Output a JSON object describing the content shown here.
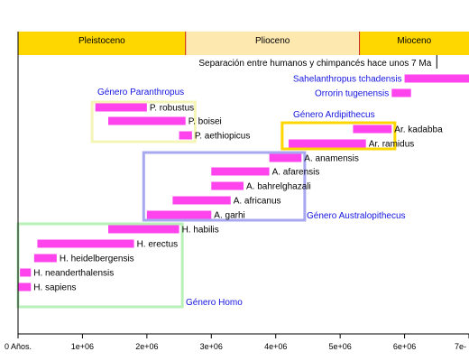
{
  "chart_data": {
    "type": "bar",
    "title": "",
    "xlabel": "",
    "ylabel": "",
    "x_range": [
      0,
      7000000
    ],
    "x_ticks": [
      {
        "value": 0,
        "label": "0 Años."
      },
      {
        "value": 1000000,
        "label": "1e+06"
      },
      {
        "value": 2000000,
        "label": "2e+06"
      },
      {
        "value": 3000000,
        "label": "3e+06"
      },
      {
        "value": 4000000,
        "label": "4e+06"
      },
      {
        "value": 5000000,
        "label": "5e+06"
      },
      {
        "value": 6000000,
        "label": "6e+06"
      },
      {
        "value": 7000000,
        "label": "7e-"
      }
    ],
    "epochs": [
      {
        "label": "Pleistoceno",
        "start": 0,
        "end": 2600000,
        "color": "#ffd700"
      },
      {
        "label": "Plioceno",
        "start": 2600000,
        "end": 5300000,
        "color": "#fde8b0"
      },
      {
        "label": "Mioceno",
        "start": 5300000,
        "end": 7000000,
        "color": "#ffd700"
      }
    ],
    "divergence": {
      "label": "Separación entre humanos y chimpancés hace unos 7 Ma",
      "value": 6500000
    },
    "species": [
      {
        "name": "Sahelanthropus tchadensis",
        "start": 6000000,
        "end": 7000000,
        "label_side": "left",
        "style": "blue"
      },
      {
        "name": "Orrorin tugenensis",
        "start": 5800000,
        "end": 6100000,
        "label_side": "left",
        "style": "blue"
      },
      {
        "name": "P. robustus",
        "start": 1200000,
        "end": 2000000,
        "label_side": "right",
        "style": "black"
      },
      {
        "name": "P. boisei",
        "start": 1400000,
        "end": 2600000,
        "label_side": "right",
        "style": "black"
      },
      {
        "name": "P. aethiopicus",
        "start": 2500000,
        "end": 2700000,
        "label_side": "right",
        "style": "black"
      },
      {
        "name": "Ar. kadabba",
        "start": 5200000,
        "end": 5800000,
        "label_side": "right",
        "style": "black"
      },
      {
        "name": "Ar. ramidus",
        "start": 4200000,
        "end": 5400000,
        "label_side": "right",
        "style": "black"
      },
      {
        "name": "A. anamensis",
        "start": 3900000,
        "end": 4400000,
        "label_side": "right",
        "style": "black"
      },
      {
        "name": "A. afarensis",
        "start": 3000000,
        "end": 3900000,
        "label_side": "right",
        "style": "black"
      },
      {
        "name": "A. bahrelghazali",
        "start": 3000000,
        "end": 3500000,
        "label_side": "right",
        "style": "black"
      },
      {
        "name": "A. africanus",
        "start": 2400000,
        "end": 3300000,
        "label_side": "right",
        "style": "black"
      },
      {
        "name": "A. garhi",
        "start": 2000000,
        "end": 3000000,
        "label_side": "right",
        "style": "black"
      },
      {
        "name": "H. habilis",
        "start": 1400000,
        "end": 2500000,
        "label_side": "right",
        "style": "black"
      },
      {
        "name": "H. erectus",
        "start": 300000,
        "end": 1800000,
        "label_side": "right",
        "style": "black"
      },
      {
        "name": "H. heidelbergensis",
        "start": 250000,
        "end": 600000,
        "label_side": "right",
        "style": "black"
      },
      {
        "name": "H. neanderthalensis",
        "start": 30000,
        "end": 200000,
        "label_side": "right",
        "style": "black"
      },
      {
        "name": "H. sapiens",
        "start": 0,
        "end": 200000,
        "label_side": "right",
        "style": "black"
      }
    ],
    "groups": [
      {
        "name": "Género Paranthropus",
        "start": 1150000,
        "end": 2750000,
        "color": "#f5f5b8"
      },
      {
        "name": "Género Ardipithecus",
        "start": 4100000,
        "end": 5850000,
        "color": "#ffd700"
      },
      {
        "name": "Género Australopithecus",
        "start": 1950000,
        "end": 4450000,
        "color": "#a8a8f0"
      },
      {
        "name": "Género Homo",
        "start": 0,
        "end": 2550000,
        "color": "#b8f0b8"
      }
    ],
    "bar_color": "#ff44ee",
    "grid": false,
    "legend": "none"
  }
}
